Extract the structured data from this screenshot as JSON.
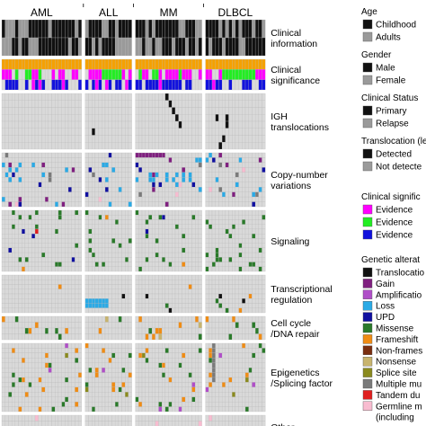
{
  "chart_data": {
    "type": "heatmap",
    "columns": [
      {
        "label": "AML",
        "count": 24
      },
      {
        "label": "ALL",
        "count": 14
      },
      {
        "label": "MM",
        "count": 20
      },
      {
        "label": "DLBCL",
        "count": 18
      }
    ],
    "sections": [
      {
        "key": "clin_info",
        "label": [
          "Clinical",
          "information"
        ],
        "rows": 2
      },
      {
        "key": "clin_sig",
        "label": [
          "Clinical",
          "significance"
        ],
        "rows": 3
      },
      {
        "key": "igh",
        "label": [
          "IGH",
          "translocations"
        ],
        "rows": 8
      },
      {
        "key": "cnv",
        "label": [
          "Copy-number",
          "variations"
        ],
        "rows": 11
      },
      {
        "key": "signaling",
        "label": [
          "Signaling"
        ],
        "rows": 13
      },
      {
        "key": "transcription",
        "label": [
          "Transcriptional",
          "regulation"
        ],
        "rows": 8
      },
      {
        "key": "cellcycle",
        "label": [
          "Cell cycle",
          "/DNA repair"
        ],
        "rows": 4
      },
      {
        "key": "epigenetics",
        "label": [
          "Epigenetics",
          "/Splicing factor"
        ],
        "rows": 14
      },
      {
        "key": "other",
        "label": [
          "Other"
        ],
        "rows": 4
      }
    ],
    "legend": [
      {
        "title": "Age",
        "items": [
          {
            "label": "Childhood",
            "color": "#111111"
          },
          {
            "label": "Adults",
            "color": "#9a9a9a"
          }
        ]
      },
      {
        "title": "Gender",
        "items": [
          {
            "label": "Male",
            "color": "#111111"
          },
          {
            "label": "Female",
            "color": "#9a9a9a"
          }
        ]
      },
      {
        "title": "Clinical Status",
        "items": [
          {
            "label": "Primary",
            "color": "#111111"
          },
          {
            "label": "Relapse",
            "color": "#9a9a9a"
          }
        ]
      },
      {
        "title": "Translocation (leukemia-ass",
        "items": [
          {
            "label": "Detected",
            "color": "#111111"
          },
          {
            "label": "Not detecte",
            "color": "#9a9a9a"
          }
        ]
      },
      {
        "title": "Clinical signific",
        "items": [
          {
            "label": "Evidence",
            "color": "#ff00ff"
          },
          {
            "label": "Evidence",
            "color": "#22ee22"
          },
          {
            "label": "Evidence",
            "color": "#1111dd"
          }
        ]
      },
      {
        "title": "Genetic alterat",
        "items": [
          {
            "label": "Translocatio",
            "color": "#111111"
          },
          {
            "label": "Gain",
            "color": "#7f1f7f"
          },
          {
            "label": "Amplificatio",
            "color": "#b04fc8"
          },
          {
            "label": "Loss",
            "color": "#2aaae6"
          },
          {
            "label": "UPD",
            "color": "#1010a0"
          },
          {
            "label": "Missense",
            "color": "#2a7a2a"
          },
          {
            "label": "Frameshift",
            "color": "#f08c14"
          },
          {
            "label": "Non-frames",
            "color": "#7a2e10"
          },
          {
            "label": "Nonsense",
            "color": "#c8b46e"
          },
          {
            "label": "Splice site",
            "color": "#8a8a1e"
          },
          {
            "label": "Multiple mu",
            "color": "#7a7a7a"
          },
          {
            "label": "Tandem du",
            "color": "#e01f1f"
          },
          {
            "label": "Germline m",
            "color": "#f8bcd0"
          },
          {
            "label": "(including",
            "color": ""
          }
        ]
      }
    ],
    "colors": {
      "background_cell": "#d9d9d9",
      "cell_border": "#b8b8b8",
      "clinical_bar": "#f5a100"
    }
  }
}
